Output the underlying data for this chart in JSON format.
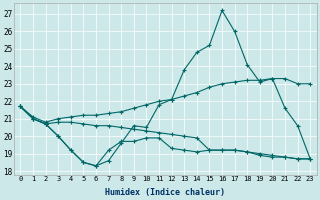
{
  "xlabel": "Humidex (Indice chaleur)",
  "bg_color": "#cce8e8",
  "line_color": "#006666",
  "xlim": [
    -0.5,
    23.5
  ],
  "ylim": [
    17.8,
    27.6
  ],
  "yticks": [
    18,
    19,
    20,
    21,
    22,
    23,
    24,
    25,
    26,
    27
  ],
  "xticks": [
    0,
    1,
    2,
    3,
    4,
    5,
    6,
    7,
    8,
    9,
    10,
    11,
    12,
    13,
    14,
    15,
    16,
    17,
    18,
    19,
    20,
    21,
    22,
    23
  ],
  "series_peak": [
    21.7,
    21.0,
    20.7,
    20.0,
    19.2,
    18.5,
    18.3,
    18.6,
    19.6,
    20.6,
    20.5,
    21.8,
    22.1,
    23.8,
    24.8,
    25.2,
    27.2,
    26.0,
    24.1,
    23.1,
    23.3,
    21.6,
    20.6,
    18.7
  ],
  "series_upper": [
    21.7,
    21.1,
    20.8,
    21.0,
    21.1,
    21.2,
    21.2,
    21.3,
    21.4,
    21.6,
    21.8,
    22.0,
    22.1,
    22.3,
    22.5,
    22.8,
    23.0,
    23.1,
    23.2,
    23.2,
    23.3,
    23.3,
    23.0,
    23.0
  ],
  "series_mid": [
    21.7,
    21.0,
    20.7,
    20.8,
    20.8,
    20.7,
    20.6,
    20.6,
    20.5,
    20.4,
    20.3,
    20.2,
    20.1,
    20.0,
    19.9,
    19.2,
    19.2,
    19.2,
    19.1,
    19.0,
    18.9,
    18.8,
    18.7,
    18.7
  ],
  "series_lower": [
    21.7,
    21.0,
    20.7,
    20.0,
    19.2,
    18.5,
    18.3,
    19.2,
    19.7,
    19.7,
    19.9,
    19.9,
    19.3,
    19.2,
    19.1,
    19.2,
    19.2,
    19.2,
    19.1,
    18.9,
    18.8,
    18.8,
    18.7,
    18.7
  ]
}
